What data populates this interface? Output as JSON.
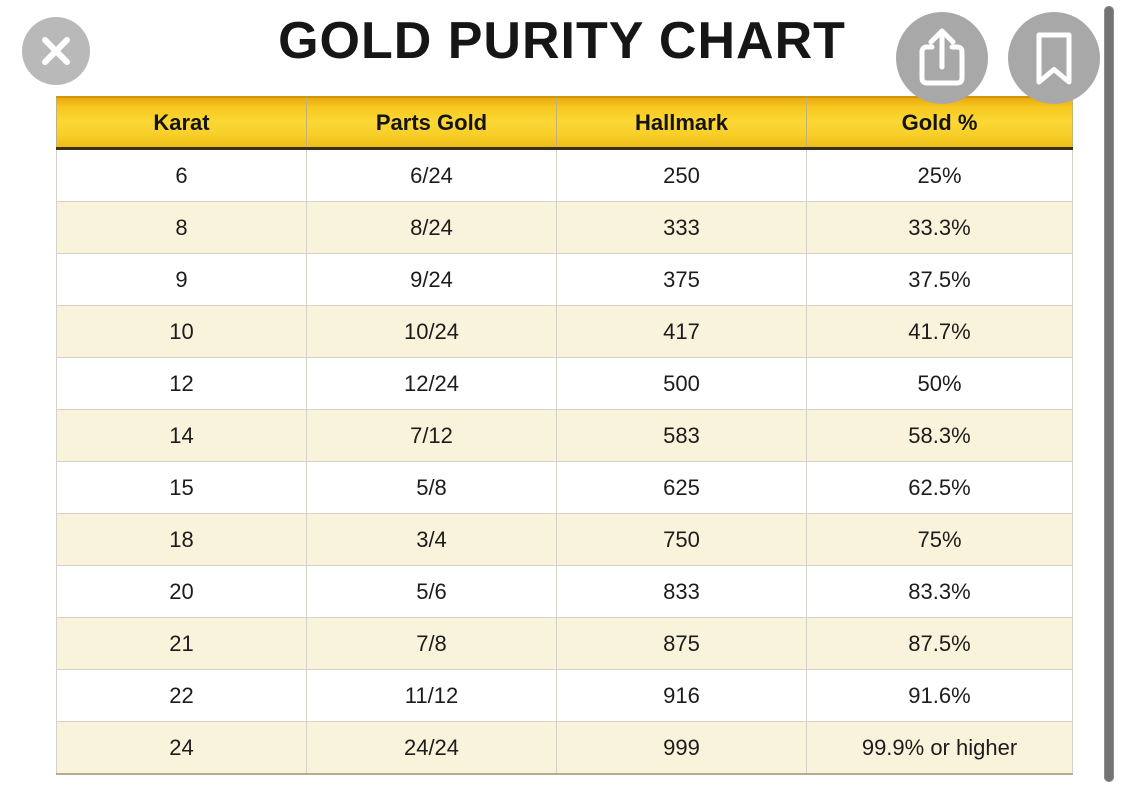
{
  "page": {
    "title": "GOLD PURITY CHART"
  },
  "toolbar": {
    "close_icon": "close-x",
    "share_icon": "share-up-arrow",
    "bookmark_icon": "bookmark-ribbon"
  },
  "table": {
    "columns": [
      "Karat",
      "Parts Gold",
      "Hallmark",
      "Gold %"
    ],
    "rows": [
      [
        "6",
        "6/24",
        "250",
        "25%"
      ],
      [
        "8",
        "8/24",
        "333",
        "33.3%"
      ],
      [
        "9",
        "9/24",
        "375",
        "37.5%"
      ],
      [
        "10",
        "10/24",
        "417",
        "41.7%"
      ],
      [
        "12",
        "12/24",
        "500",
        "50%"
      ],
      [
        "14",
        "7/12",
        "583",
        "58.3%"
      ],
      [
        "15",
        "5/8",
        "625",
        "62.5%"
      ],
      [
        "18",
        "3/4",
        "750",
        "75%"
      ],
      [
        "20",
        "5/6",
        "833",
        "83.3%"
      ],
      [
        "21",
        "7/8",
        "875",
        "87.5%"
      ],
      [
        "22",
        "11/12",
        "916",
        "91.6%"
      ],
      [
        "24",
        "24/24",
        "999",
        "99.9% or higher"
      ]
    ]
  },
  "colors": {
    "header_gradient_top": "#eaa90d",
    "header_gradient_mid": "#fcd735",
    "header_gradient_bottom": "#efbc16",
    "header_border_dark": "#3a3118",
    "row_cream": "#faf3dc",
    "row_white": "#ffffff",
    "grid_line": "#d4d2ca",
    "title_color": "#161616",
    "close_button_gray": "#b9b9b9",
    "action_button_gray": "#a8a8a8",
    "scrollbar_gray": "#737373"
  }
}
